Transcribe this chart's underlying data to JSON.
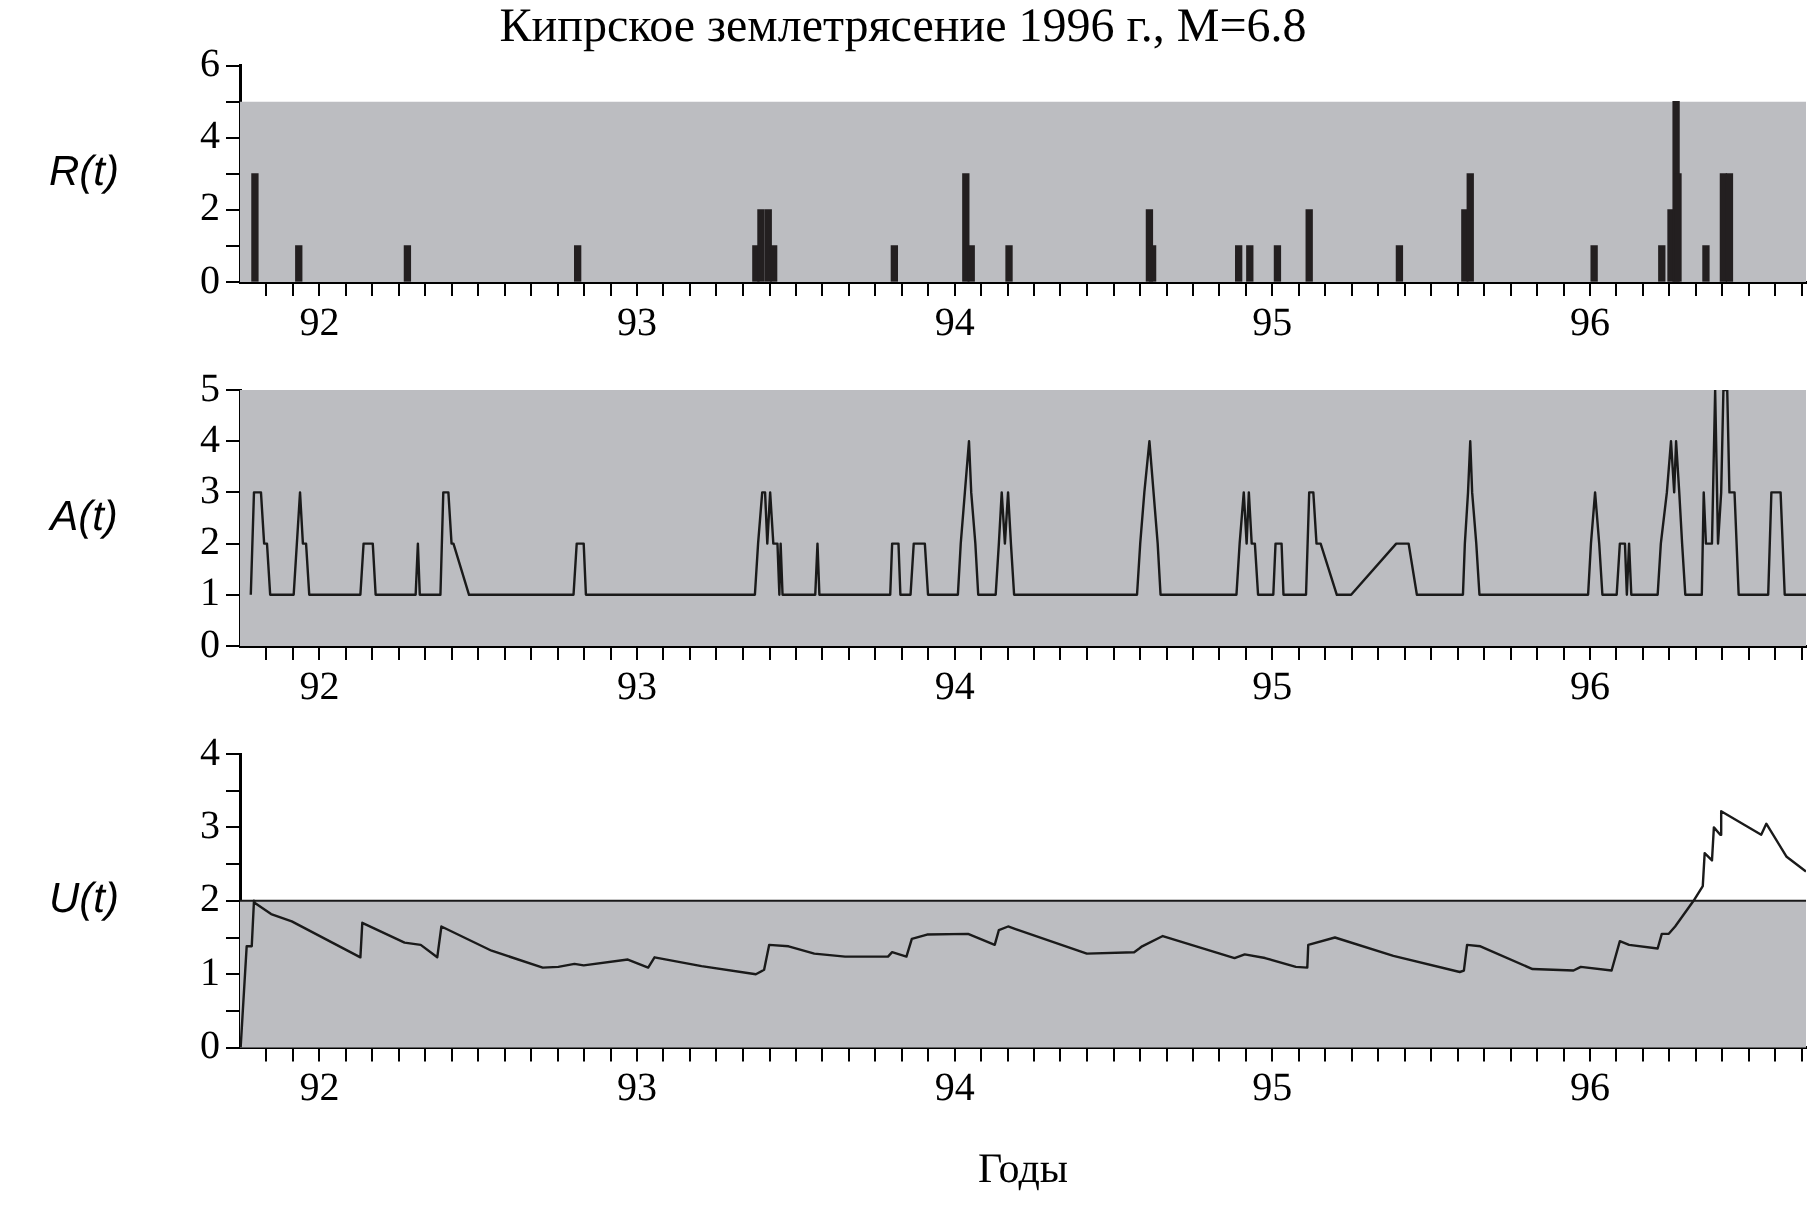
{
  "chart_data": [
    {
      "type": "bar",
      "title": "Кипрское землетрясение 1996 г., M=6.8",
      "ylabel": "R(t)",
      "series": [
        {
          "color": "#231f20",
          "x": [
            91.797,
            91.928,
            91.935,
            92.277,
            92.813,
            93.374,
            93.39,
            93.413,
            93.43,
            93.81,
            94.026,
            94.035,
            94.052,
            94.171,
            94.613,
            94.623,
            94.894,
            94.929,
            95.016,
            95.116,
            95.4,
            95.606,
            95.623,
            96.013,
            96.226,
            96.255,
            96.271,
            96.277,
            96.365,
            96.42,
            96.439
          ],
          "values": [
            3,
            null,
            1,
            1,
            1,
            1,
            2,
            2,
            1,
            1,
            null,
            3,
            1,
            1,
            2,
            1,
            1,
            1,
            1,
            2,
            1,
            2,
            3,
            1,
            1,
            2,
            5,
            3,
            1,
            3,
            3
          ]
        }
      ],
      "xlim": [
        91.75,
        96.68
      ],
      "ylim": [
        0,
        6
      ],
      "yticks": [
        0,
        {
          "value": 1,
          "label": null
        },
        2,
        {
          "value": 3,
          "label": null
        },
        4,
        {
          "value": 5,
          "label": null
        },
        6
      ],
      "xticks": [
        {
          "value": 91.833,
          "label": null
        },
        {
          "value": 91.917,
          "label": null
        },
        92,
        {
          "value": 92.083,
          "label": null
        },
        {
          "value": 92.167,
          "label": null
        },
        {
          "value": 92.25,
          "label": null
        },
        {
          "value": 92.333,
          "label": null
        },
        {
          "value": 92.417,
          "label": null
        },
        {
          "value": 92.5,
          "label": null
        },
        {
          "value": 92.583,
          "label": null
        },
        {
          "value": 92.667,
          "label": null
        },
        {
          "value": 92.75,
          "label": null
        },
        {
          "value": 92.833,
          "label": null
        },
        {
          "value": 92.917,
          "label": null
        },
        93,
        {
          "value": 93.083,
          "label": null
        },
        {
          "value": 93.167,
          "label": null
        },
        {
          "value": 93.25,
          "label": null
        },
        {
          "value": 93.333,
          "label": null
        },
        {
          "value": 93.417,
          "label": null
        },
        {
          "value": 93.5,
          "label": null
        },
        {
          "value": 93.583,
          "label": null
        },
        {
          "value": 93.667,
          "label": null
        },
        {
          "value": 93.75,
          "label": null
        },
        {
          "value": 93.833,
          "label": null
        },
        {
          "value": 93.917,
          "label": null
        },
        94,
        {
          "value": 94.083,
          "label": null
        },
        {
          "value": 94.167,
          "label": null
        },
        {
          "value": 94.25,
          "label": null
        },
        {
          "value": 94.333,
          "label": null
        },
        {
          "value": 94.417,
          "label": null
        },
        {
          "value": 94.5,
          "label": null
        },
        {
          "value": 94.583,
          "label": null
        },
        {
          "value": 94.667,
          "label": null
        },
        {
          "value": 94.75,
          "label": null
        },
        {
          "value": 94.833,
          "label": null
        },
        {
          "value": 94.917,
          "label": null
        },
        95,
        {
          "value": 95.083,
          "label": null
        },
        {
          "value": 95.167,
          "label": null
        },
        {
          "value": 95.25,
          "label": null
        },
        {
          "value": 95.333,
          "label": null
        },
        {
          "value": 95.417,
          "label": null
        },
        {
          "value": 95.5,
          "label": null
        },
        {
          "value": 95.583,
          "label": null
        },
        {
          "value": 95.667,
          "label": null
        },
        {
          "value": 95.75,
          "label": null
        },
        {
          "value": 95.833,
          "label": null
        },
        {
          "value": 95.917,
          "label": null
        },
        96,
        {
          "value": 96.083,
          "label": null
        },
        {
          "value": 96.167,
          "label": null
        },
        {
          "value": 96.25,
          "label": null
        },
        {
          "value": 96.333,
          "label": null
        },
        {
          "value": 96.417,
          "label": null
        },
        {
          "value": 96.5,
          "label": null
        },
        {
          "value": 96.583,
          "label": null
        },
        {
          "value": 96.667,
          "label": null
        }
      ],
      "bands": [
        {
          "axis": "y",
          "from": 0,
          "to": 5,
          "color": "#bcbdc1"
        }
      ],
      "grid": false,
      "legend": false
    },
    {
      "type": "line",
      "ylabel": "A(t)",
      "marker": "none",
      "line_style": "solid",
      "series": [
        {
          "color": "#1a1a1a",
          "x": [
            91.784,
            91.794,
            91.816,
            91.826,
            91.835,
            91.845,
            91.919,
            91.929,
            91.939,
            91.948,
            91.958,
            91.968,
            92.129,
            92.139,
            92.168,
            92.177,
            92.303,
            92.31,
            92.316,
            92.381,
            92.39,
            92.406,
            92.416,
            92.422,
            92.471,
            92.8,
            92.81,
            92.832,
            92.839,
            93.371,
            93.381,
            93.394,
            93.403,
            93.41,
            93.419,
            93.429,
            93.442,
            93.448,
            93.452,
            93.458,
            93.561,
            93.568,
            93.574,
            93.797,
            93.803,
            93.823,
            93.829,
            93.861,
            93.871,
            93.906,
            93.916,
            94.01,
            94.019,
            94.032,
            94.045,
            94.052,
            94.065,
            94.074,
            94.129,
            94.139,
            94.148,
            94.158,
            94.168,
            94.177,
            94.187,
            94.574,
            94.584,
            94.597,
            94.613,
            94.626,
            94.639,
            94.648,
            94.887,
            94.897,
            94.91,
            94.919,
            94.926,
            94.935,
            94.945,
            94.955,
            95.003,
            95.01,
            95.029,
            95.035,
            95.106,
            95.116,
            95.129,
            95.139,
            95.152,
            95.203,
            95.248,
            95.39,
            95.429,
            95.455,
            95.6,
            95.606,
            95.616,
            95.623,
            95.629,
            95.642,
            95.652,
            95.994,
            96.003,
            96.016,
            96.029,
            96.039,
            96.084,
            96.094,
            96.11,
            96.116,
            96.123,
            96.13,
            96.213,
            96.223,
            96.242,
            96.255,
            96.265,
            96.271,
            96.281,
            96.29,
            96.3,
            96.352,
            96.358,
            96.365,
            96.384,
            96.394,
            96.403,
            96.413,
            96.42,
            96.432,
            96.439,
            96.455,
            96.468,
            96.561,
            96.571,
            96.6,
            96.613,
            96.68
          ],
          "values": [
            1,
            3,
            3,
            2,
            2,
            1,
            1,
            2,
            3,
            2,
            2,
            1,
            1,
            2,
            2,
            1,
            1,
            2,
            1,
            1,
            3,
            3,
            2,
            2,
            1,
            1,
            2,
            2,
            1,
            1,
            2,
            3,
            3,
            2,
            3,
            2,
            2,
            1,
            2,
            1,
            1,
            2,
            1,
            1,
            2,
            2,
            1,
            1,
            2,
            2,
            1,
            1,
            2,
            3,
            4,
            3,
            2,
            1,
            1,
            2,
            3,
            2,
            3,
            2,
            1,
            1,
            2,
            3,
            4,
            3,
            2,
            1,
            1,
            2,
            3,
            2,
            3,
            2,
            2,
            1,
            1,
            2,
            2,
            1,
            1,
            3,
            3,
            2,
            2,
            1,
            1,
            2,
            2,
            1,
            1,
            2,
            3,
            4,
            3,
            2,
            1,
            1,
            2,
            3,
            2,
            1,
            1,
            2,
            2,
            1,
            2,
            1,
            1,
            2,
            3,
            4,
            3,
            4,
            3,
            2,
            1,
            1,
            3,
            2,
            2,
            5,
            2,
            3,
            5,
            5,
            3,
            3,
            1,
            1,
            3,
            3,
            1,
            1
          ]
        }
      ],
      "xlim": [
        91.75,
        96.68
      ],
      "ylim": [
        0,
        5
      ],
      "yticks": [
        0,
        1,
        2,
        3,
        4,
        5
      ],
      "xticks": [
        {
          "value": 91.833,
          "label": null
        },
        {
          "value": 91.917,
          "label": null
        },
        92,
        {
          "value": 92.083,
          "label": null
        },
        {
          "value": 92.167,
          "label": null
        },
        {
          "value": 92.25,
          "label": null
        },
        {
          "value": 92.333,
          "label": null
        },
        {
          "value": 92.417,
          "label": null
        },
        {
          "value": 92.5,
          "label": null
        },
        {
          "value": 92.583,
          "label": null
        },
        {
          "value": 92.667,
          "label": null
        },
        {
          "value": 92.75,
          "label": null
        },
        {
          "value": 92.833,
          "label": null
        },
        {
          "value": 92.917,
          "label": null
        },
        93,
        {
          "value": 93.083,
          "label": null
        },
        {
          "value": 93.167,
          "label": null
        },
        {
          "value": 93.25,
          "label": null
        },
        {
          "value": 93.333,
          "label": null
        },
        {
          "value": 93.417,
          "label": null
        },
        {
          "value": 93.5,
          "label": null
        },
        {
          "value": 93.583,
          "label": null
        },
        {
          "value": 93.667,
          "label": null
        },
        {
          "value": 93.75,
          "label": null
        },
        {
          "value": 93.833,
          "label": null
        },
        {
          "value": 93.917,
          "label": null
        },
        94,
        {
          "value": 94.083,
          "label": null
        },
        {
          "value": 94.167,
          "label": null
        },
        {
          "value": 94.25,
          "label": null
        },
        {
          "value": 94.333,
          "label": null
        },
        {
          "value": 94.417,
          "label": null
        },
        {
          "value": 94.5,
          "label": null
        },
        {
          "value": 94.583,
          "label": null
        },
        {
          "value": 94.667,
          "label": null
        },
        {
          "value": 94.75,
          "label": null
        },
        {
          "value": 94.833,
          "label": null
        },
        {
          "value": 94.917,
          "label": null
        },
        95,
        {
          "value": 95.083,
          "label": null
        },
        {
          "value": 95.167,
          "label": null
        },
        {
          "value": 95.25,
          "label": null
        },
        {
          "value": 95.333,
          "label": null
        },
        {
          "value": 95.417,
          "label": null
        },
        {
          "value": 95.5,
          "label": null
        },
        {
          "value": 95.583,
          "label": null
        },
        {
          "value": 95.667,
          "label": null
        },
        {
          "value": 95.75,
          "label": null
        },
        {
          "value": 95.833,
          "label": null
        },
        {
          "value": 95.917,
          "label": null
        },
        96,
        {
          "value": 96.083,
          "label": null
        },
        {
          "value": 96.167,
          "label": null
        },
        {
          "value": 96.25,
          "label": null
        },
        {
          "value": 96.333,
          "label": null
        },
        {
          "value": 96.417,
          "label": null
        },
        {
          "value": 96.5,
          "label": null
        },
        {
          "value": 96.583,
          "label": null
        },
        {
          "value": 96.667,
          "label": null
        }
      ],
      "bands": [
        {
          "axis": "y",
          "from": 0,
          "to": 5,
          "color": "#bcbdc1"
        }
      ],
      "grid": false,
      "legend": false
    },
    {
      "type": "line",
      "ylabel": "U(t)",
      "xlabel": "Годы",
      "marker": "none",
      "line_style": "solid",
      "series": [
        {
          "color": "#1a1a1a",
          "x": [
            91.752,
            91.771,
            91.787,
            91.794,
            91.797,
            91.848,
            91.913,
            92.129,
            92.135,
            92.268,
            92.319,
            92.371,
            92.384,
            92.542,
            92.703,
            92.752,
            92.803,
            92.832,
            92.971,
            93.035,
            93.055,
            93.203,
            93.374,
            93.4,
            93.416,
            93.477,
            93.558,
            93.655,
            93.79,
            93.803,
            93.848,
            93.865,
            93.913,
            94.042,
            94.126,
            94.139,
            94.168,
            94.416,
            94.565,
            94.581,
            94.59,
            94.655,
            94.881,
            94.913,
            94.977,
            95.074,
            95.11,
            95.113,
            95.197,
            95.381,
            95.59,
            95.603,
            95.613,
            95.655,
            95.819,
            95.948,
            95.971,
            96.068,
            96.094,
            96.123,
            96.213,
            96.226,
            96.248,
            96.268,
            96.326,
            96.355,
            96.361,
            96.384,
            96.39,
            96.41,
            96.413,
            96.539,
            96.555,
            96.619,
            96.68
          ],
          "values": [
            0,
            1.38,
            1.38,
            2.0,
            1.97,
            1.82,
            1.72,
            1.23,
            1.7,
            1.43,
            1.4,
            1.23,
            1.65,
            1.32,
            1.09,
            1.1,
            1.14,
            1.12,
            1.2,
            1.09,
            1.23,
            1.11,
            1.0,
            1.06,
            1.4,
            1.38,
            1.28,
            1.24,
            1.24,
            1.3,
            1.24,
            1.48,
            1.54,
            1.55,
            1.4,
            1.6,
            1.65,
            1.28,
            1.3,
            1.35,
            1.38,
            1.52,
            1.22,
            1.27,
            1.22,
            1.1,
            1.09,
            1.4,
            1.5,
            1.25,
            1.03,
            1.05,
            1.4,
            1.38,
            1.07,
            1.05,
            1.1,
            1.05,
            1.45,
            1.4,
            1.35,
            1.55,
            1.55,
            1.65,
            2.0,
            2.2,
            2.65,
            2.55,
            3.0,
            2.9,
            3.22,
            2.9,
            3.05,
            2.6,
            2.4
          ]
        }
      ],
      "xlim": [
        91.75,
        96.68
      ],
      "ylim": [
        0,
        4
      ],
      "yticks": [
        0,
        {
          "value": 0.5,
          "label": null
        },
        1,
        {
          "value": 1.5,
          "label": null
        },
        2,
        {
          "value": 2.5,
          "label": null
        },
        3,
        {
          "value": 3.5,
          "label": null
        },
        4
      ],
      "xticks": [
        {
          "value": 91.833,
          "label": null
        },
        {
          "value": 91.917,
          "label": null
        },
        92,
        {
          "value": 92.083,
          "label": null
        },
        {
          "value": 92.167,
          "label": null
        },
        {
          "value": 92.25,
          "label": null
        },
        {
          "value": 92.333,
          "label": null
        },
        {
          "value": 92.417,
          "label": null
        },
        {
          "value": 92.5,
          "label": null
        },
        {
          "value": 92.583,
          "label": null
        },
        {
          "value": 92.667,
          "label": null
        },
        {
          "value": 92.75,
          "label": null
        },
        {
          "value": 92.833,
          "label": null
        },
        {
          "value": 92.917,
          "label": null
        },
        93,
        {
          "value": 93.083,
          "label": null
        },
        {
          "value": 93.167,
          "label": null
        },
        {
          "value": 93.25,
          "label": null
        },
        {
          "value": 93.333,
          "label": null
        },
        {
          "value": 93.417,
          "label": null
        },
        {
          "value": 93.5,
          "label": null
        },
        {
          "value": 93.583,
          "label": null
        },
        {
          "value": 93.667,
          "label": null
        },
        {
          "value": 93.75,
          "label": null
        },
        {
          "value": 93.833,
          "label": null
        },
        {
          "value": 93.917,
          "label": null
        },
        94,
        {
          "value": 94.083,
          "label": null
        },
        {
          "value": 94.167,
          "label": null
        },
        {
          "value": 94.25,
          "label": null
        },
        {
          "value": 94.333,
          "label": null
        },
        {
          "value": 94.417,
          "label": null
        },
        {
          "value": 94.5,
          "label": null
        },
        {
          "value": 94.583,
          "label": null
        },
        {
          "value": 94.667,
          "label": null
        },
        {
          "value": 94.75,
          "label": null
        },
        {
          "value": 94.833,
          "label": null
        },
        {
          "value": 94.917,
          "label": null
        },
        95,
        {
          "value": 95.083,
          "label": null
        },
        {
          "value": 95.167,
          "label": null
        },
        {
          "value": 95.25,
          "label": null
        },
        {
          "value": 95.333,
          "label": null
        },
        {
          "value": 95.417,
          "label": null
        },
        {
          "value": 95.5,
          "label": null
        },
        {
          "value": 95.583,
          "label": null
        },
        {
          "value": 95.667,
          "label": null
        },
        {
          "value": 95.75,
          "label": null
        },
        {
          "value": 95.833,
          "label": null
        },
        {
          "value": 95.917,
          "label": null
        },
        96,
        {
          "value": 96.083,
          "label": null
        },
        {
          "value": 96.167,
          "label": null
        },
        {
          "value": 96.25,
          "label": null
        },
        {
          "value": 96.333,
          "label": null
        },
        {
          "value": 96.417,
          "label": null
        },
        {
          "value": 96.5,
          "label": null
        },
        {
          "value": 96.583,
          "label": null
        },
        {
          "value": 96.667,
          "label": null
        }
      ],
      "bands": [
        {
          "axis": "y",
          "from": 0,
          "to": 2,
          "color": "#bcbdc1"
        }
      ],
      "ref_lines": [
        {
          "axis": "y",
          "value": 2,
          "color": "#1a1a1a"
        }
      ],
      "grid": false,
      "legend": false
    }
  ]
}
